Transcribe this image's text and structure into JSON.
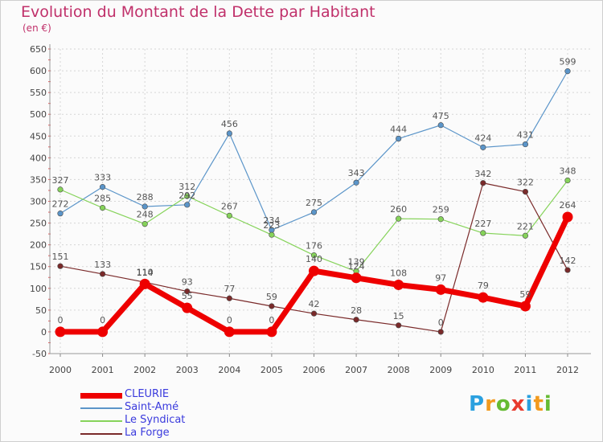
{
  "chart_data": {
    "type": "line",
    "title": "Evolution du Montant de la Dette par Habitant",
    "subtitle": "(en €)",
    "x": [
      "2000",
      "2001",
      "2002",
      "2003",
      "2004",
      "2005",
      "2006",
      "2007",
      "2008",
      "2009",
      "2010",
      "2011",
      "2012"
    ],
    "ylim": [
      -50,
      650
    ],
    "yticks": [
      -50,
      0,
      50,
      100,
      150,
      200,
      250,
      300,
      350,
      400,
      450,
      500,
      550,
      600,
      650
    ],
    "grid": true,
    "legend_position": "bottom-left",
    "series": [
      {
        "name": "CLEURIE",
        "color": "#ee0000",
        "values": [
          0,
          0,
          110,
          55,
          0,
          0,
          140,
          124,
          108,
          97,
          79,
          59,
          264
        ]
      },
      {
        "name": "Saint-Amé",
        "color": "#5b95c9",
        "values": [
          272,
          333,
          288,
          292,
          456,
          234,
          275,
          343,
          444,
          475,
          424,
          431,
          599
        ]
      },
      {
        "name": "Le Syndicat",
        "color": "#86d35a",
        "values": [
          327,
          285,
          248,
          312,
          267,
          223,
          176,
          139,
          260,
          259,
          227,
          221,
          348
        ]
      },
      {
        "name": "La Forge",
        "color": "#7a2a2a",
        "values": [
          151,
          133,
          114,
          93,
          77,
          59,
          42,
          28,
          15,
          0,
          342,
          322,
          142
        ]
      }
    ]
  },
  "logo": {
    "letters": [
      "P",
      "r",
      "o",
      "x",
      "i",
      "t",
      "i"
    ],
    "colors": [
      "#2aa0df",
      "#f29a1e",
      "#66bb33",
      "#e83b2e",
      "#2aa0df",
      "#f29a1e",
      "#66bb33"
    ]
  }
}
